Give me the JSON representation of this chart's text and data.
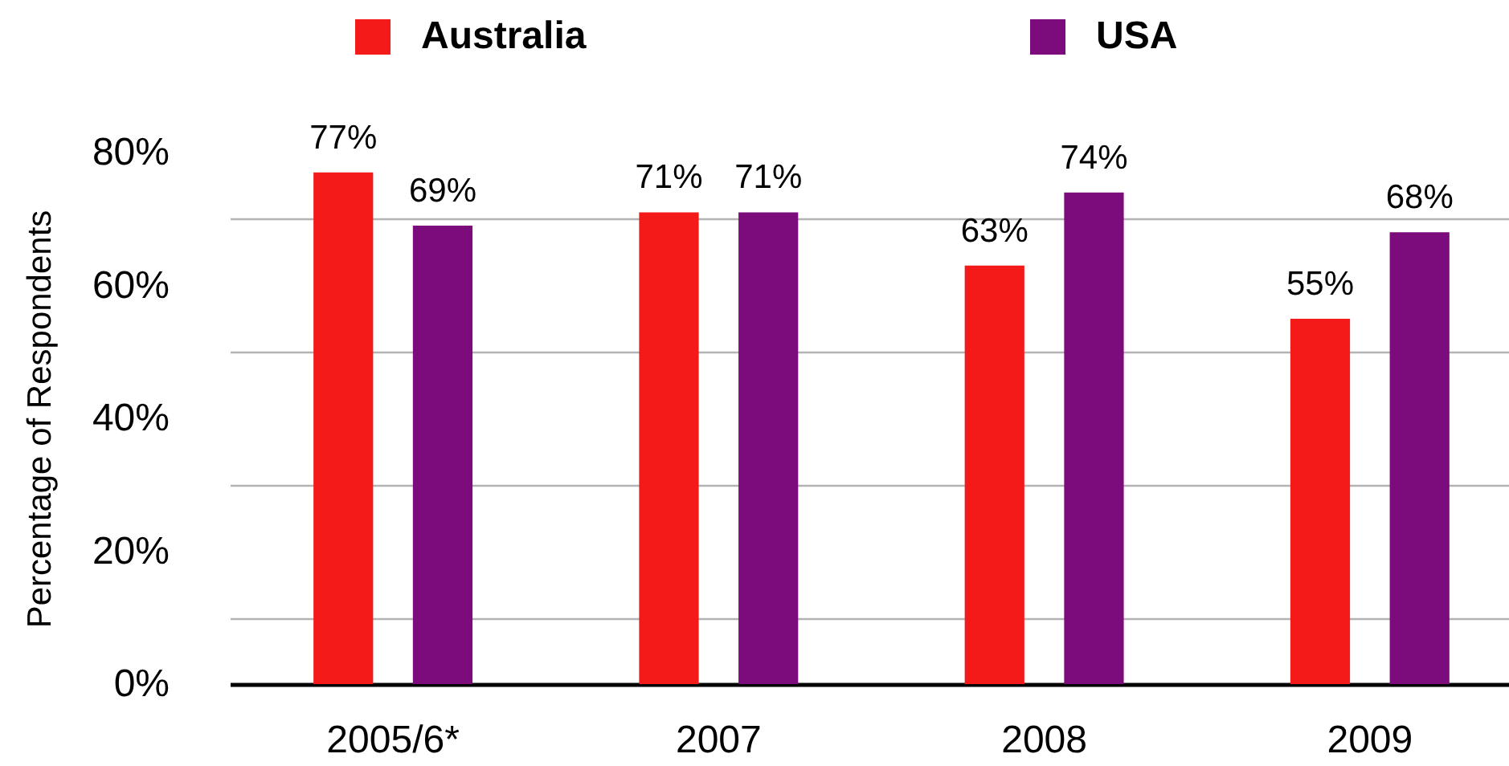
{
  "chart_data": {
    "type": "bar",
    "ylabel": "Percentage of Respondents",
    "categories": [
      "2005/6*",
      "2007",
      "2008",
      "2009"
    ],
    "series": [
      {
        "name": "Australia",
        "color": "#f41a1a",
        "values": [
          77,
          71,
          63,
          55
        ],
        "value_labels": [
          "77%",
          "71%",
          "63%",
          "55%"
        ]
      },
      {
        "name": "USA",
        "color": "#7c0c7c",
        "values": [
          69,
          71,
          74,
          68
        ],
        "value_labels": [
          "69%",
          "71%",
          "74%",
          "68%"
        ]
      }
    ],
    "ylim": [
      0,
      80
    ],
    "yticks": [
      {
        "value": 0,
        "label": "0%"
      },
      {
        "value": 10,
        "label": null
      },
      {
        "value": 20,
        "label": "20%"
      },
      {
        "value": 30,
        "label": null
      },
      {
        "value": 40,
        "label": "40%"
      },
      {
        "value": 50,
        "label": null
      },
      {
        "value": 60,
        "label": "60%"
      },
      {
        "value": 70,
        "label": null
      },
      {
        "value": 80,
        "label": "80%"
      }
    ],
    "grid": "y",
    "legend": "top"
  }
}
